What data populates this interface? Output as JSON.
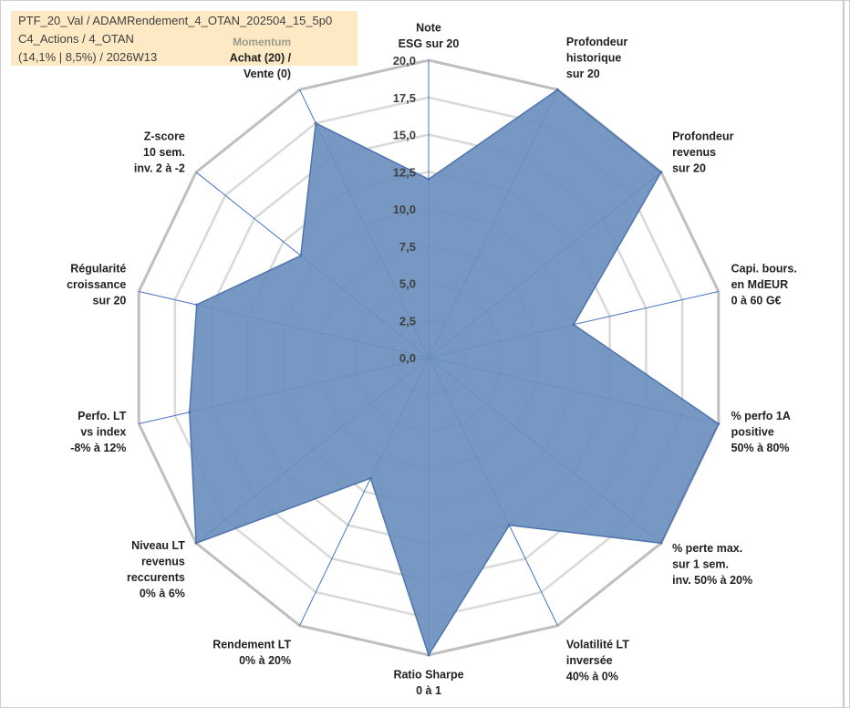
{
  "info": {
    "line1": "PTF_20_Val / ADAMRendement_4_OTAN_202504_15_5p0",
    "line2": "C4_Actions / 4_OTAN",
    "line3": "(14,1% | 8,5%) / 2026W13"
  },
  "colors": {
    "fill": "#6b8fbd",
    "stroke": "#4d74ad",
    "grid_outer": "#bfbfbf",
    "grid_inner": "#d9d9d9",
    "spoke": "#4472c4",
    "info_bg": "#fde9c4"
  },
  "chart_data": {
    "type": "radar",
    "title": "",
    "rmin": 0,
    "rmax": 20,
    "tick_step": 2.5,
    "tick_labels": [
      "0,0",
      "2,5",
      "5,0",
      "7,5",
      "10,0",
      "12,5",
      "15,0",
      "17,5",
      "20,0"
    ],
    "axes": [
      {
        "lines": [
          "Note",
          "ESG sur 20"
        ]
      },
      {
        "lines": [
          "Profondeur",
          "historique",
          "sur 20"
        ]
      },
      {
        "lines": [
          "Profondeur",
          "revenus",
          "sur 20"
        ]
      },
      {
        "lines": [
          "Capi. bours.",
          "en MdEUR",
          "0 à 60 G€"
        ]
      },
      {
        "lines": [
          "% perfo 1A",
          "positive",
          "50% à 80%"
        ]
      },
      {
        "lines": [
          "% perte max.",
          "sur 1 sem.",
          "inv. 50% à 20%"
        ]
      },
      {
        "lines": [
          "Volatilité LT",
          "inversée",
          "40% à 0%"
        ]
      },
      {
        "lines": [
          "Ratio Sharpe",
          "0 à 1"
        ]
      },
      {
        "lines": [
          "Rendement LT",
          "0% à 20%"
        ]
      },
      {
        "lines": [
          "Niveau LT",
          "revenus",
          "reccurents",
          "0% à 6%"
        ]
      },
      {
        "lines": [
          "Perfo. LT",
          "vs index",
          "-8% à 12%"
        ]
      },
      {
        "lines": [
          "Régularité",
          "croissance",
          "sur 20"
        ]
      },
      {
        "lines": [
          "Z-score",
          "10 sem.",
          "inv. 2 à -2"
        ]
      },
      {
        "lines": [
          "Momentum",
          "Achat (20) /",
          "Vente (0)"
        ],
        "accent_first_line": true
      }
    ],
    "series": [
      {
        "values": [
          12.0,
          20.0,
          20.0,
          10.0,
          20.0,
          20.0,
          12.5,
          20.0,
          9.0,
          20.0,
          16.5,
          16.0,
          11.0,
          17.5
        ]
      }
    ]
  }
}
